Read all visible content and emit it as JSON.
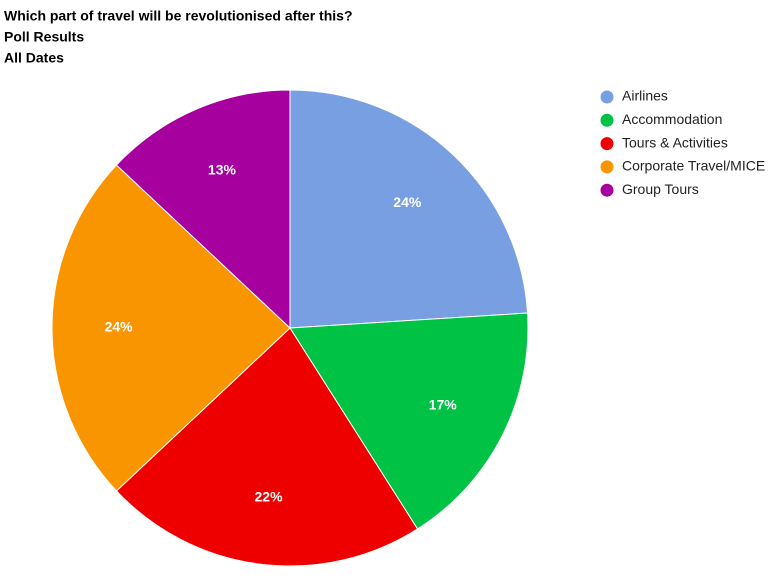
{
  "chart_data": {
    "type": "pie",
    "title": "Which part of travel will be revolutionised after this?",
    "subtitles": [
      "Poll Results",
      "All Dates"
    ],
    "categories": [
      "Airlines",
      "Accommodation",
      "Tours & Activities",
      "Corporate Travel/MICE",
      "Group Tours"
    ],
    "values": [
      24,
      17,
      22,
      24,
      13
    ],
    "value_labels": [
      "24%",
      "17%",
      "22%",
      "24%",
      "13%"
    ],
    "colors": [
      "#789fe2",
      "#00c244",
      "#ee0000",
      "#f89500",
      "#a6009f"
    ],
    "legend": "right"
  }
}
